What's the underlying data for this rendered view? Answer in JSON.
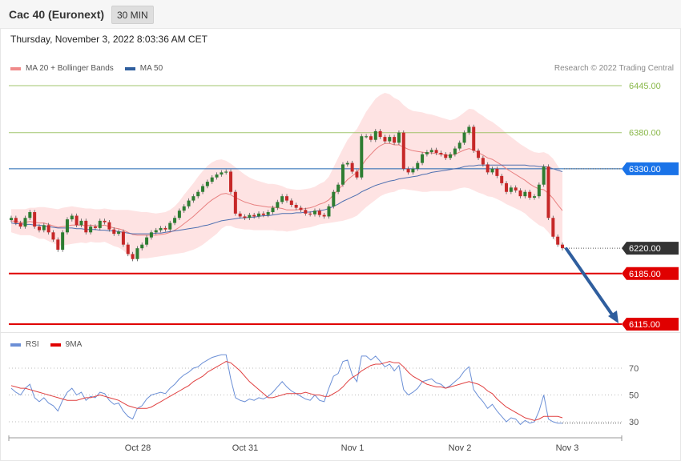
{
  "header": {
    "title": "Cac 40 (Euronext)",
    "timeframe": "30 MIN"
  },
  "timestamp": "Thursday, November 3, 2022 8:03:36 AM CET",
  "legend": {
    "ma20_label": "MA 20 + Bollinger Bands",
    "ma50_label": "MA 50",
    "copyright": "Research © 2022 Trading Central"
  },
  "rsi_legend": {
    "rsi_label": "RSI",
    "ma_label": "9MA"
  },
  "colors": {
    "bull": "#2e7d32",
    "bear": "#c62828",
    "band": "#fdd9d9",
    "ma20": "#e88080",
    "ma50": "#4e6fb0",
    "resistance": "#8ab84a",
    "pivot": "#1f66b0",
    "support": "#e00000",
    "current": "#333333",
    "arrow": "#2f5e9e",
    "rsi": "#6b8fd6",
    "rsi_ma": "#e04040"
  },
  "chart_data": [
    {
      "type": "candlestick",
      "ylim": [
        6100,
        6455
      ],
      "x_ticks": [
        "Oct 28",
        "Oct 31",
        "Nov 1",
        "Nov 2",
        "Nov 3"
      ],
      "levels": [
        {
          "value": 6445,
          "label": "6445.00",
          "kind": "resistance"
        },
        {
          "value": 6380,
          "label": "6380.00",
          "kind": "resistance"
        },
        {
          "value": 6330,
          "label": "6330.00",
          "kind": "pivot"
        },
        {
          "value": 6220,
          "label": "6220.00",
          "kind": "current"
        },
        {
          "value": 6185,
          "label": "6185.00",
          "kind": "support"
        },
        {
          "value": 6115,
          "label": "6115.00",
          "kind": "support"
        }
      ],
      "closes": [
        6262,
        6255,
        6250,
        6262,
        6270,
        6250,
        6245,
        6252,
        6242,
        6232,
        6218,
        6242,
        6260,
        6265,
        6252,
        6258,
        6242,
        6250,
        6248,
        6258,
        6256,
        6246,
        6240,
        6243,
        6225,
        6212,
        6205,
        6220,
        6225,
        6235,
        6242,
        6245,
        6248,
        6246,
        6255,
        6262,
        6272,
        6278,
        6286,
        6292,
        6298,
        6306,
        6312,
        6318,
        6322,
        6325,
        6326,
        6298,
        6268,
        6264,
        6262,
        6266,
        6264,
        6268,
        6266,
        6270,
        6276,
        6284,
        6292,
        6286,
        6280,
        6276,
        6273,
        6268,
        6267,
        6272,
        6266,
        6264,
        6278,
        6298,
        6308,
        6336,
        6338,
        6326,
        6318,
        6375,
        6375,
        6370,
        6382,
        6374,
        6368,
        6374,
        6366,
        6380,
        6330,
        6325,
        6330,
        6338,
        6350,
        6353,
        6356,
        6352,
        6350,
        6345,
        6350,
        6358,
        6366,
        6380,
        6388,
        6355,
        6345,
        6336,
        6325,
        6330,
        6320,
        6310,
        6298,
        6304,
        6300,
        6292,
        6298,
        6290,
        6292,
        6308,
        6333,
        6262,
        6236,
        6225,
        6220
      ],
      "ma20": [
        6258,
        6257,
        6256,
        6256,
        6257,
        6256,
        6255,
        6255,
        6253,
        6251,
        6249,
        6250,
        6251,
        6252,
        6252,
        6252,
        6251,
        6252,
        6251,
        6251,
        6252,
        6250,
        6248,
        6247,
        6245,
        6242,
        6239,
        6238,
        6238,
        6238,
        6238,
        6238,
        6239,
        6240,
        6242,
        6245,
        6249,
        6254,
        6259,
        6264,
        6270,
        6276,
        6282,
        6287,
        6291,
        6295,
        6296,
        6294,
        6290,
        6287,
        6284,
        6282,
        6280,
        6279,
        6278,
        6277,
        6277,
        6276,
        6275,
        6273,
        6273,
        6273,
        6274,
        6275,
        6276,
        6278,
        6281,
        6283,
        6287,
        6294,
        6301,
        6308,
        6315,
        6320,
        6325,
        6334,
        6343,
        6350,
        6357,
        6362,
        6365,
        6365,
        6363,
        6363,
        6360,
        6357,
        6355,
        6354,
        6353,
        6352,
        6352,
        6351,
        6350,
        6349,
        6348,
        6350,
        6353,
        6356,
        6358,
        6356,
        6352,
        6349,
        6345,
        6343,
        6339,
        6335,
        6330,
        6326,
        6322,
        6318,
        6314,
        6309,
        6305,
        6302,
        6301,
        6296,
        6289,
        6280,
        6272
      ],
      "band_width": [
        16,
        17,
        18,
        18,
        19,
        20,
        22,
        22,
        23,
        24,
        25,
        26,
        26,
        26,
        25,
        24,
        24,
        23,
        23,
        23,
        23,
        24,
        25,
        26,
        28,
        31,
        33,
        33,
        32,
        32,
        31,
        30,
        30,
        30,
        31,
        33,
        36,
        40,
        43,
        46,
        49,
        51,
        52,
        52,
        51,
        48,
        45,
        43,
        42,
        40,
        38,
        36,
        35,
        34,
        33,
        32,
        32,
        32,
        31,
        30,
        29,
        28,
        27,
        27,
        27,
        27,
        28,
        29,
        32,
        38,
        44,
        50,
        55,
        58,
        60,
        63,
        66,
        68,
        70,
        70,
        70,
        68,
        65,
        62,
        58,
        56,
        55,
        55,
        55,
        54,
        53,
        52,
        51,
        50,
        49,
        49,
        50,
        52,
        55,
        56,
        55,
        54,
        53,
        52,
        51,
        50,
        49,
        48,
        47,
        46,
        46,
        47,
        48,
        50,
        52,
        54,
        55,
        54,
        52
      ],
      "ma50": [
        6255,
        6254,
        6254,
        6253,
        6253,
        6252,
        6252,
        6251,
        6250,
        6249,
        6248,
        6248,
        6248,
        6248,
        6247,
        6247,
        6246,
        6246,
        6246,
        6245,
        6245,
        6244,
        6244,
        6243,
        6242,
        6241,
        6240,
        6240,
        6240,
        6240,
        6240,
        6241,
        6241,
        6242,
        6243,
        6244,
        6245,
        6246,
        6247,
        6248,
        6249,
        6251,
        6252,
        6254,
        6256,
        6258,
        6259,
        6260,
        6261,
        6262,
        6262,
        6263,
        6263,
        6264,
        6265,
        6265,
        6266,
        6267,
        6268,
        6268,
        6268,
        6269,
        6269,
        6270,
        6270,
        6271,
        6272,
        6273,
        6275,
        6278,
        6281,
        6285,
        6288,
        6291,
        6294,
        6298,
        6301,
        6304,
        6307,
        6309,
        6311,
        6313,
        6314,
        6316,
        6317,
        6318,
        6319,
        6320,
        6322,
        6323,
        6325,
        6326,
        6327,
        6328,
        6329,
        6330,
        6331,
        6333,
        6334,
        6334,
        6335,
        6335,
        6335,
        6335,
        6335,
        6335,
        6335,
        6335,
        6335,
        6335,
        6335,
        6334,
        6334,
        6333,
        6333,
        6332,
        6330,
        6328,
        6326
      ]
    },
    {
      "type": "line",
      "name": "RSI",
      "ylim": [
        20,
        85
      ],
      "y_ticks": [
        70,
        50,
        30
      ],
      "rsi": [
        55,
        52,
        50,
        55,
        58,
        48,
        45,
        48,
        44,
        42,
        38,
        46,
        52,
        55,
        50,
        52,
        46,
        49,
        48,
        52,
        51,
        46,
        43,
        44,
        38,
        34,
        32,
        40,
        42,
        47,
        50,
        51,
        52,
        51,
        55,
        58,
        62,
        65,
        67,
        70,
        71,
        74,
        76,
        78,
        79,
        80,
        80,
        62,
        48,
        46,
        45,
        47,
        46,
        48,
        47,
        49,
        52,
        56,
        60,
        56,
        53,
        51,
        49,
        47,
        46,
        50,
        46,
        45,
        55,
        64,
        66,
        75,
        76,
        65,
        60,
        79,
        79,
        76,
        79,
        75,
        71,
        73,
        68,
        72,
        54,
        50,
        52,
        55,
        60,
        61,
        62,
        59,
        58,
        55,
        57,
        60,
        63,
        68,
        71,
        54,
        49,
        45,
        40,
        43,
        38,
        34,
        30,
        33,
        32,
        28,
        31,
        29,
        30,
        38,
        50,
        32,
        30,
        29,
        29
      ],
      "ma9": [
        57,
        56,
        55,
        55,
        54,
        53,
        52,
        51,
        50,
        49,
        48,
        47,
        46,
        46,
        46,
        47,
        48,
        48,
        49,
        50,
        49,
        48,
        47,
        46,
        44,
        42,
        41,
        40,
        40,
        40,
        41,
        43,
        45,
        47,
        49,
        51,
        53,
        55,
        57,
        60,
        62,
        64,
        67,
        69,
        71,
        73,
        75,
        74,
        71,
        68,
        64,
        60,
        57,
        54,
        51,
        48,
        48,
        49,
        50,
        51,
        51,
        51,
        51,
        52,
        51,
        50,
        50,
        49,
        49,
        51,
        53,
        56,
        60,
        63,
        65,
        68,
        70,
        72,
        73,
        73,
        74,
        75,
        74,
        74,
        71,
        67,
        64,
        62,
        60,
        58,
        57,
        56,
        56,
        55,
        56,
        57,
        58,
        59,
        60,
        59,
        58,
        56,
        53,
        51,
        47,
        44,
        41,
        39,
        37,
        35,
        33,
        32,
        31,
        32,
        34,
        34,
        34,
        34,
        33
      ]
    }
  ]
}
